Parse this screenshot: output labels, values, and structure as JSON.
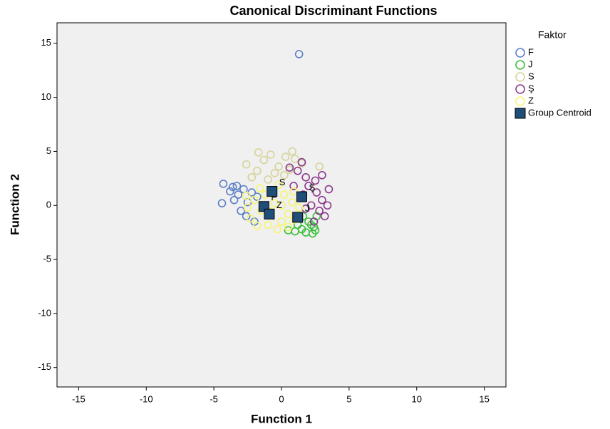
{
  "chart_data": {
    "type": "scatter",
    "title": "Canonical Discriminant Functions",
    "x_label": "Function 1",
    "y_label": "Function 2",
    "legend_title": "Faktor",
    "legend_position": "right",
    "xlim": [
      -16.6,
      16.6
    ],
    "ylim": [
      -16.8,
      16.9
    ],
    "xticks": [
      -15,
      -10,
      -5,
      0,
      5,
      10,
      15
    ],
    "yticks": [
      -15,
      -10,
      -5,
      0,
      5,
      10,
      15
    ],
    "series": [
      {
        "name": "F",
        "color": "#5b7fc6",
        "x": [
          -4.3,
          -4.4,
          -3.6,
          -3.2,
          -3.5,
          -2.8,
          -3.0,
          -2.5,
          -2.2,
          -3.8,
          1.3,
          -2.6,
          -1.8,
          -3.3,
          -2.0
        ],
        "y": [
          2.0,
          0.2,
          1.7,
          1.0,
          0.5,
          1.5,
          -0.5,
          0.3,
          1.2,
          1.3,
          14,
          -1.0,
          0.8,
          1.8,
          -1.5
        ]
      },
      {
        "name": "J",
        "color": "#3cbf3c",
        "x": [
          2.3,
          1.8,
          2.4,
          1.5,
          2.0,
          2.6,
          1.0,
          2.2,
          1.6,
          2.5,
          1.2,
          0.5
        ],
        "y": [
          -2.6,
          -2.5,
          -2.0,
          -2.2,
          -1.5,
          -1.0,
          -2.4,
          -1.8,
          -1.0,
          -2.3,
          -1.8,
          -2.3
        ]
      },
      {
        "name": "S",
        "color": "#d6d39a",
        "x": [
          -1.7,
          -0.8,
          0.8,
          1.0,
          -1.3,
          0.3,
          -0.2,
          -1.8,
          -0.5,
          0.6,
          -2.2,
          1.5,
          -1.0,
          0.2,
          2.8,
          -2.6
        ],
        "y": [
          4.9,
          4.7,
          5.0,
          4.3,
          4.2,
          4.5,
          3.6,
          3.2,
          3.0,
          3.3,
          2.6,
          3.9,
          2.4,
          2.8,
          3.6,
          3.8
        ]
      },
      {
        "name": "Ş",
        "color": "#8b3a8b",
        "x": [
          1.5,
          2.5,
          3.5,
          3.0,
          2.8,
          2.0,
          1.6,
          2.2,
          3.2,
          1.8,
          0.9,
          2.6,
          3.4,
          1.2,
          0.6,
          2.4,
          1.8,
          3.0
        ],
        "y": [
          4.0,
          2.3,
          1.5,
          0.5,
          -0.5,
          1.8,
          1.0,
          0.0,
          -1.0,
          2.6,
          1.8,
          1.2,
          0.0,
          3.2,
          3.5,
          -1.5,
          -0.3,
          2.8
        ]
      },
      {
        "name": "Z",
        "color": "#f5f56e",
        "x": [
          -2.0,
          -1.5,
          -2.3,
          -1.0,
          0.0,
          0.5,
          0.8,
          0.2,
          -0.5,
          -1.2,
          -2.5,
          -1.8,
          0.5,
          1.0,
          -0.3,
          -0.8,
          0.0,
          -1.6,
          0.9,
          1.3,
          -2.6,
          -0.2
        ],
        "y": [
          0.5,
          -0.5,
          -1.2,
          -1.8,
          -1.5,
          -0.8,
          0.3,
          1.0,
          0.2,
          1.0,
          -0.2,
          -1.9,
          -2.0,
          -1.3,
          -2.2,
          -0.6,
          0.0,
          1.6,
          1.3,
          -0.2,
          0.9,
          1.9
        ]
      }
    ],
    "centroids": {
      "name": "Group Centroid",
      "color": "#1f4e79",
      "labels": [
        "F",
        "J",
        "S",
        "Ş",
        "Z"
      ],
      "x": [
        -1.3,
        1.2,
        -0.7,
        1.5,
        -0.9
      ],
      "y": [
        -0.1,
        -1.1,
        1.3,
        0.8,
        -0.8
      ]
    }
  }
}
